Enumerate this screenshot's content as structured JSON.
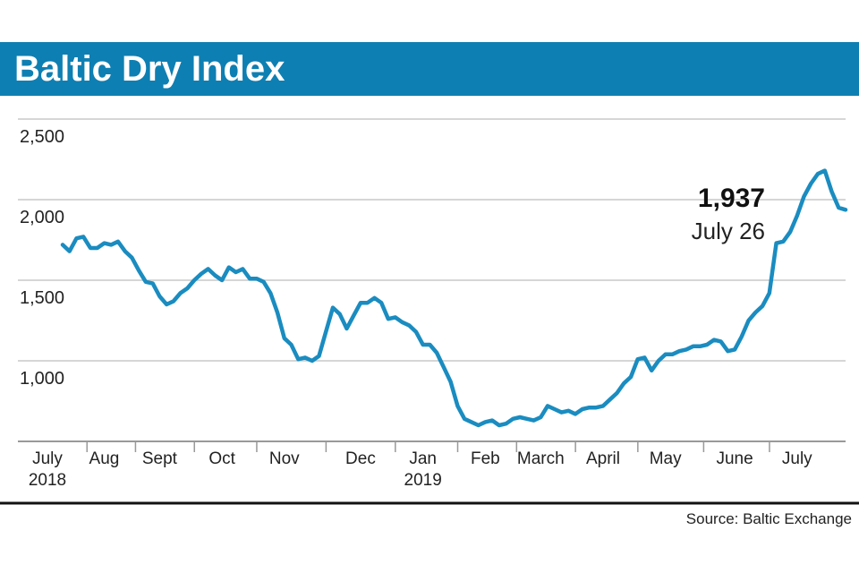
{
  "chart_data": {
    "type": "line",
    "title": "Baltic Dry Index",
    "source": "Source: Baltic Exchange",
    "annotation": {
      "label": "1,937",
      "date": "July 26"
    },
    "categories": [
      "July 2018",
      null,
      null,
      null,
      null,
      null,
      "Aug",
      null,
      null,
      null,
      null,
      null,
      null,
      null,
      "Sept",
      null,
      null,
      null,
      null,
      null,
      null,
      null,
      null,
      "Oct",
      null,
      null,
      null,
      null,
      null,
      null,
      null,
      null,
      "Nov",
      null,
      null,
      null,
      null,
      null,
      null,
      null,
      null,
      null,
      null,
      "Dec",
      null,
      null,
      null,
      null,
      null,
      null,
      null,
      null,
      "Jan 2019",
      null,
      null,
      null,
      null,
      null,
      null,
      null,
      null,
      "Feb",
      null,
      null,
      null,
      null,
      null,
      null,
      null,
      "March",
      null,
      null,
      null,
      null,
      null,
      null,
      null,
      null,
      "April",
      null,
      null,
      null,
      null,
      null,
      null,
      null,
      null,
      "May",
      null,
      null,
      null,
      null,
      null,
      null,
      null,
      null,
      null,
      "June",
      null,
      null,
      null,
      null,
      null,
      null,
      null,
      null,
      "July",
      null,
      null,
      null,
      null,
      null,
      null,
      null
    ],
    "series": [
      {
        "name": "Baltic Dry Index",
        "color": "#1a8cc0",
        "values": [
          1720,
          1680,
          1760,
          1770,
          1700,
          1700,
          1730,
          1720,
          1740,
          1680,
          1640,
          1560,
          1490,
          1480,
          1400,
          1350,
          1370,
          1420,
          1450,
          1500,
          1540,
          1570,
          1530,
          1500,
          1580,
          1550,
          1570,
          1510,
          1510,
          1490,
          1420,
          1300,
          1140,
          1100,
          1010,
          1020,
          1000,
          1030,
          1180,
          1330,
          1290,
          1200,
          1280,
          1360,
          1360,
          1390,
          1360,
          1260,
          1270,
          1240,
          1220,
          1180,
          1100,
          1100,
          1050,
          960,
          870,
          720,
          640,
          620,
          600,
          620,
          630,
          600,
          610,
          640,
          650,
          640,
          630,
          650,
          720,
          700,
          680,
          690,
          670,
          700,
          710,
          710,
          720,
          760,
          800,
          860,
          900,
          1010,
          1020,
          940,
          1000,
          1040,
          1040,
          1060,
          1070,
          1090,
          1090,
          1100,
          1130,
          1120,
          1060,
          1070,
          1150,
          1250,
          1300,
          1340,
          1420,
          1730,
          1740,
          1800,
          1900,
          2020,
          2100,
          2160,
          2180,
          2050,
          1950,
          1937
        ]
      }
    ],
    "ylim": [
      500,
      2500
    ],
    "yticks": [
      {
        "value": 1000,
        "label": "1,000"
      },
      {
        "value": 1500,
        "label": "1,500"
      },
      {
        "value": 2000,
        "label": "2,000"
      },
      {
        "value": 2500,
        "label": "2,500"
      }
    ],
    "grid": true
  }
}
